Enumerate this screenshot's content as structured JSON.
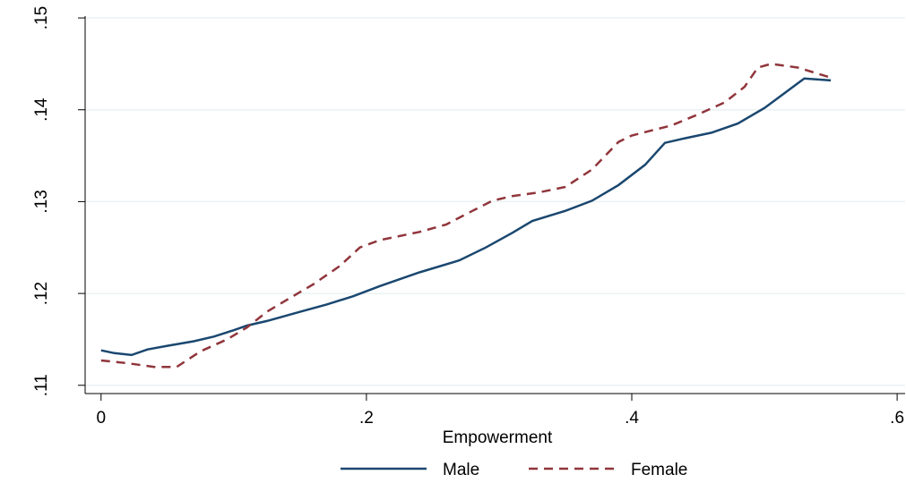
{
  "chart_data": {
    "type": "line",
    "xlabel": "Empowerment",
    "xlim": [
      -0.012,
      0.606
    ],
    "ylim": [
      0.1091,
      0.1502
    ],
    "xticks": [
      0,
      {
        "value": 0.2,
        "label": ".2"
      },
      {
        "value": 0.4,
        "label": ".4"
      },
      {
        "value": 0.6,
        "label": ".6"
      }
    ],
    "yticks": [
      {
        "value": 0.11,
        "label": ".11"
      },
      {
        "value": 0.12,
        "label": ".12"
      },
      {
        "value": 0.13,
        "label": ".13"
      },
      {
        "value": 0.14,
        "label": ".14"
      },
      {
        "value": 0.15,
        "label": ".15"
      }
    ],
    "grid": true,
    "legend": "bottom",
    "series": [
      {
        "name": "Male",
        "color": "#1a476f",
        "dash": false,
        "x": [
          0,
          0.01,
          0.023,
          0.035,
          0.05,
          0.07,
          0.085,
          0.1,
          0.11,
          0.125,
          0.15,
          0.17,
          0.19,
          0.21,
          0.24,
          0.27,
          0.29,
          0.31,
          0.325,
          0.35,
          0.37,
          0.39,
          0.41,
          0.425,
          0.44,
          0.46,
          0.48,
          0.5,
          0.515,
          0.53,
          0.55
        ],
        "values": [
          0.1138,
          0.1135,
          0.1133,
          0.1139,
          0.1143,
          0.1148,
          0.1153,
          0.116,
          0.1165,
          0.117,
          0.118,
          0.1188,
          0.1197,
          0.1208,
          0.1223,
          0.1236,
          0.125,
          0.1266,
          0.1279,
          0.129,
          0.1301,
          0.1318,
          0.134,
          0.1364,
          0.1369,
          0.1375,
          0.1385,
          0.1402,
          0.1418,
          0.1434,
          0.1432
        ]
      },
      {
        "name": "Female",
        "color": "#90353b",
        "dash": true,
        "x": [
          0,
          0.02,
          0.04,
          0.057,
          0.075,
          0.095,
          0.11,
          0.125,
          0.14,
          0.16,
          0.18,
          0.195,
          0.21,
          0.24,
          0.26,
          0.28,
          0.295,
          0.31,
          0.33,
          0.35,
          0.37,
          0.39,
          0.4,
          0.43,
          0.45,
          0.47,
          0.485,
          0.495,
          0.505,
          0.525,
          0.55
        ],
        "values": [
          0.1127,
          0.1124,
          0.112,
          0.112,
          0.1137,
          0.115,
          0.1163,
          0.118,
          0.1193,
          0.121,
          0.123,
          0.125,
          0.1258,
          0.1267,
          0.1275,
          0.129,
          0.1301,
          0.1306,
          0.131,
          0.1316,
          0.1335,
          0.1365,
          0.1372,
          0.1383,
          0.1395,
          0.1408,
          0.1425,
          0.1446,
          0.145,
          0.1446,
          0.1435
        ]
      }
    ]
  }
}
